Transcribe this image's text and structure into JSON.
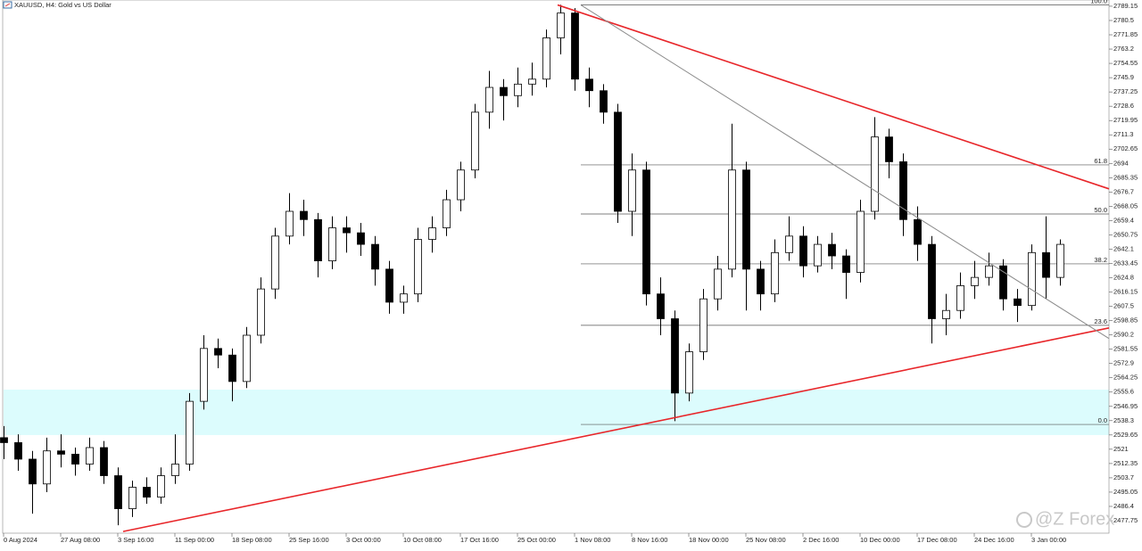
{
  "chart_data": {
    "type": "candlestick",
    "title": "XAUUSD, H4:  Gold vs US Dollar",
    "watermark": "@Z Forex",
    "categories": [
      "0 Aug 2024",
      null,
      null,
      null,
      "27 Aug 08:00",
      null,
      null,
      null,
      "3 Sep 16:00",
      null,
      null,
      null,
      "11 Sep 00:00",
      null,
      null,
      null,
      "18 Sep 08:00",
      null,
      null,
      null,
      "25 Sep 16:00",
      null,
      null,
      null,
      "3 Oct 00:00",
      null,
      null,
      null,
      "10 Oct 08:00",
      null,
      null,
      null,
      "17 Oct 16:00",
      null,
      null,
      null,
      "25 Oct 00:00",
      null,
      null,
      null,
      "1 Nov 08:00",
      null,
      null,
      null,
      "8 Nov 16:00",
      null,
      null,
      null,
      "18 Nov 00:00",
      null,
      null,
      null,
      "25 Nov 08:00",
      null,
      null,
      null,
      "2 Dec 16:00",
      null,
      null,
      null,
      "10 Dec 00:00",
      null,
      null,
      null,
      "17 Dec 08:00",
      null,
      null,
      null,
      "24 Dec 16:00",
      null,
      null,
      null,
      "3 Jan 00:00",
      null,
      null
    ],
    "ohlc": [
      [
        2528,
        2535,
        2515,
        2525
      ],
      [
        2525,
        2530,
        2508,
        2515
      ],
      [
        2515,
        2520,
        2482,
        2500
      ],
      [
        2500,
        2528,
        2495,
        2520
      ],
      [
        2520,
        2530,
        2510,
        2518
      ],
      [
        2518,
        2522,
        2505,
        2512
      ],
      [
        2512,
        2528,
        2508,
        2522
      ],
      [
        2522,
        2526,
        2500,
        2505
      ],
      [
        2505,
        2510,
        2475,
        2485
      ],
      [
        2485,
        2502,
        2480,
        2498
      ],
      [
        2498,
        2504,
        2488,
        2492
      ],
      [
        2492,
        2510,
        2488,
        2505
      ],
      [
        2505,
        2530,
        2500,
        2512
      ],
      [
        2512,
        2555,
        2508,
        2550
      ],
      [
        2550,
        2590,
        2545,
        2582
      ],
      [
        2582,
        2588,
        2570,
        2578
      ],
      [
        2578,
        2582,
        2550,
        2562
      ],
      [
        2562,
        2595,
        2558,
        2590
      ],
      [
        2590,
        2625,
        2585,
        2618
      ],
      [
        2618,
        2655,
        2612,
        2650
      ],
      [
        2650,
        2676,
        2645,
        2665
      ],
      [
        2665,
        2672,
        2650,
        2660
      ],
      [
        2660,
        2664,
        2625,
        2635
      ],
      [
        2635,
        2662,
        2630,
        2655
      ],
      [
        2655,
        2662,
        2640,
        2652
      ],
      [
        2652,
        2658,
        2638,
        2645
      ],
      [
        2645,
        2650,
        2620,
        2630
      ],
      [
        2630,
        2635,
        2603,
        2610
      ],
      [
        2610,
        2620,
        2603,
        2615
      ],
      [
        2615,
        2655,
        2610,
        2648
      ],
      [
        2648,
        2662,
        2640,
        2655
      ],
      [
        2655,
        2678,
        2650,
        2672
      ],
      [
        2672,
        2695,
        2665,
        2690
      ],
      [
        2690,
        2730,
        2685,
        2725
      ],
      [
        2725,
        2750,
        2715,
        2740
      ],
      [
        2740,
        2745,
        2720,
        2735
      ],
      [
        2735,
        2752,
        2728,
        2742
      ],
      [
        2742,
        2755,
        2735,
        2745
      ],
      [
        2745,
        2775,
        2740,
        2770
      ],
      [
        2770,
        2790,
        2760,
        2785
      ],
      [
        2785,
        2788,
        2738,
        2745
      ],
      [
        2745,
        2752,
        2728,
        2738
      ],
      [
        2738,
        2742,
        2718,
        2725
      ],
      [
        2725,
        2730,
        2658,
        2665
      ],
      [
        2665,
        2700,
        2650,
        2690
      ],
      [
        2690,
        2695,
        2608,
        2615
      ],
      [
        2615,
        2625,
        2590,
        2600
      ],
      [
        2600,
        2605,
        2538,
        2555
      ],
      [
        2555,
        2585,
        2550,
        2580
      ],
      [
        2580,
        2618,
        2575,
        2612
      ],
      [
        2612,
        2638,
        2605,
        2630
      ],
      [
        2630,
        2718,
        2625,
        2690
      ],
      [
        2690,
        2695,
        2605,
        2630
      ],
      [
        2630,
        2635,
        2605,
        2615
      ],
      [
        2615,
        2648,
        2610,
        2640
      ],
      [
        2640,
        2662,
        2635,
        2650
      ],
      [
        2650,
        2656,
        2625,
        2632
      ],
      [
        2632,
        2650,
        2628,
        2645
      ],
      [
        2645,
        2652,
        2630,
        2638
      ],
      [
        2638,
        2642,
        2612,
        2628
      ],
      [
        2628,
        2672,
        2622,
        2665
      ],
      [
        2665,
        2722,
        2660,
        2710
      ],
      [
        2710,
        2715,
        2685,
        2695
      ],
      [
        2695,
        2700,
        2650,
        2660
      ],
      [
        2660,
        2668,
        2635,
        2645
      ],
      [
        2645,
        2650,
        2585,
        2600
      ],
      [
        2600,
        2615,
        2590,
        2605
      ],
      [
        2605,
        2628,
        2600,
        2620
      ],
      [
        2620,
        2635,
        2612,
        2625
      ],
      [
        2625,
        2640,
        2620,
        2632
      ],
      [
        2632,
        2636,
        2605,
        2612
      ],
      [
        2612,
        2618,
        2598,
        2608
      ],
      [
        2608,
        2645,
        2605,
        2640
      ],
      [
        2640,
        2662,
        2612,
        2625
      ],
      [
        2625,
        2648,
        2620,
        2645
      ]
    ],
    "ylim": [
      2470.2,
      2792.9
    ],
    "yticks": [
      2477.75,
      2486.4,
      2495.05,
      2503.7,
      2512.35,
      2521.0,
      2529.65,
      2538.3,
      2546.95,
      2555.6,
      2564.25,
      2572.9,
      2581.55,
      2590.2,
      2598.85,
      2607.5,
      2616.15,
      2624.8,
      2633.45,
      2642.1,
      2650.75,
      2659.4,
      2668.05,
      2676.7,
      2685.35,
      2694.0,
      2702.65,
      2711.3,
      2719.95,
      2728.6,
      2737.25,
      2745.9,
      2754.55,
      2763.2,
      2771.85,
      2780.5,
      2789.15
    ],
    "zone": {
      "color": "#dcfcfd",
      "top": 2557.1,
      "bottom": 2529.6
    },
    "fib_levels": [
      {
        "label": "0.0",
        "price": 2536.0
      },
      {
        "label": "23.6",
        "price": 2596.0
      },
      {
        "label": "38.2",
        "price": 2633.2
      },
      {
        "label": "50.0",
        "price": 2663.4
      },
      {
        "label": "61.8",
        "price": 2693.1
      },
      {
        "label": "100.0",
        "price": 2790.0
      }
    ],
    "trendlines": [
      {
        "color": "#e8262a",
        "start": 2789.9,
        "end": 2678.6
      },
      {
        "color": "#e8262a",
        "start": 2471.2,
        "end": 2594.4
      },
      {
        "color": "#8a8a8a",
        "start": 2789.9,
        "end": 2588.0
      }
    ]
  }
}
